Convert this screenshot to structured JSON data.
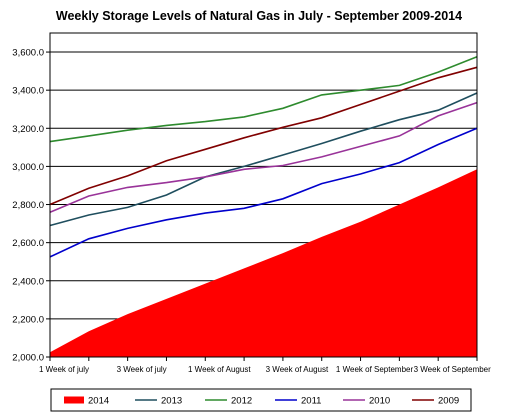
{
  "chart_data": {
    "type": "line",
    "title": "Weekly  Storage Levels of Natural Gas in July - September 2009-2014",
    "xlabel": "",
    "ylabel": "",
    "ylim": [
      2000,
      3700
    ],
    "yticks": [
      "2,000.0",
      "2,200.0",
      "2,400.0",
      "2,600.0",
      "2,800.0",
      "3,000.0",
      "3,200.0",
      "3,400.0",
      "3,600.0"
    ],
    "ytick_values": [
      2000,
      2200,
      2400,
      2600,
      2800,
      3000,
      3200,
      3400,
      3600
    ],
    "x_labels": [
      "1 Week of july",
      "3 Week of july",
      "1 Week of August",
      "3 Week of August",
      "1 Week of September",
      "3 Week of September"
    ],
    "x_label_week_index": [
      0,
      2,
      4,
      6,
      8,
      10
    ],
    "grid": true,
    "legend_position": "bottom",
    "series": [
      {
        "name": "2014",
        "style": "area",
        "color": "#ff0000",
        "values": [
          2025,
          2135,
          2225,
          2305,
          2385,
          2465,
          2545,
          2630,
          2710,
          2800,
          2890,
          2985
        ]
      },
      {
        "name": "2013",
        "style": "line",
        "color": "#1f4e5e",
        "values": [
          2690,
          2745,
          2785,
          2850,
          2945,
          3000,
          3060,
          3120,
          3185,
          3245,
          3295,
          3385
        ]
      },
      {
        "name": "2012",
        "style": "line",
        "color": "#2e8b2e",
        "values": [
          3130,
          3160,
          3190,
          3215,
          3235,
          3260,
          3305,
          3375,
          3400,
          3425,
          3495,
          3575
        ]
      },
      {
        "name": "2011",
        "style": "line",
        "color": "#0000cc",
        "values": [
          2525,
          2620,
          2675,
          2720,
          2755,
          2780,
          2830,
          2910,
          2960,
          3020,
          3115,
          3200
        ]
      },
      {
        "name": "2010",
        "style": "line",
        "color": "#993399",
        "values": [
          2760,
          2845,
          2890,
          2915,
          2945,
          2985,
          3005,
          3050,
          3105,
          3160,
          3265,
          3335
        ]
      },
      {
        "name": "2009",
        "style": "line",
        "color": "#800000",
        "values": [
          2800,
          2885,
          2950,
          3030,
          3090,
          3150,
          3205,
          3255,
          3325,
          3395,
          3465,
          3520
        ]
      }
    ]
  }
}
